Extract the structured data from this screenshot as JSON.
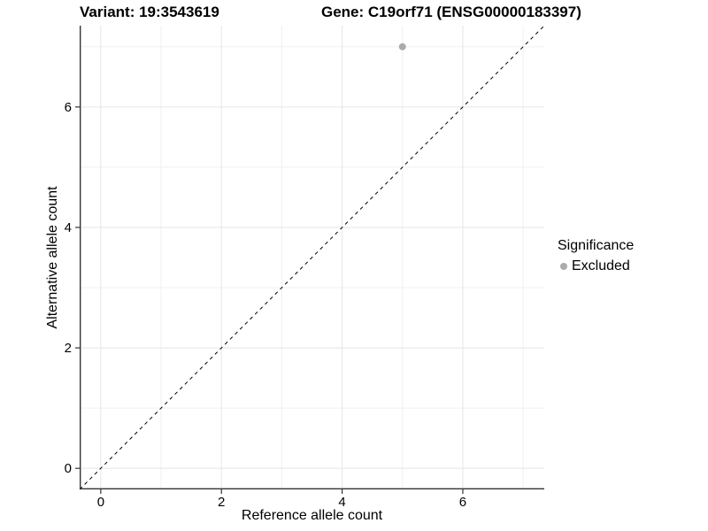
{
  "chart_data": {
    "type": "scatter",
    "title_variant": "Variant: 19:3543619",
    "title_gene": "Gene: C19orf71 (ENSG00000183397)",
    "xlabel": "Reference allele count",
    "ylabel": "Alternative allele count",
    "xlim": [
      -0.35,
      7.35
    ],
    "ylim": [
      -0.35,
      7.35
    ],
    "xticks": [
      0,
      2,
      4,
      6
    ],
    "yticks": [
      0,
      2,
      4,
      6
    ],
    "xticks_minor": [
      1,
      3,
      5,
      7
    ],
    "yticks_minor": [
      1,
      3,
      5,
      7
    ],
    "grid": true,
    "series": [
      {
        "name": "Excluded",
        "color": "#ababab",
        "marker": "circle",
        "points": [
          {
            "x": 5,
            "y": 7
          }
        ]
      }
    ],
    "reference_line": {
      "equation": "y = x",
      "style": "dashed",
      "color": "#000000",
      "from": [
        -0.35,
        -0.35
      ],
      "to": [
        7.35,
        7.35
      ]
    },
    "legend": {
      "title": "Significance",
      "position": "right",
      "items": [
        {
          "label": "Excluded",
          "color": "#ababab",
          "marker": "circle"
        }
      ]
    },
    "colors": {
      "background": "#ffffff",
      "grid_major": "#e5e5e5",
      "grid_minor": "#f0f0f0",
      "axis_line": "#333333",
      "tick": "#333333",
      "text": "#000000"
    },
    "tick_font_size": 15
  }
}
